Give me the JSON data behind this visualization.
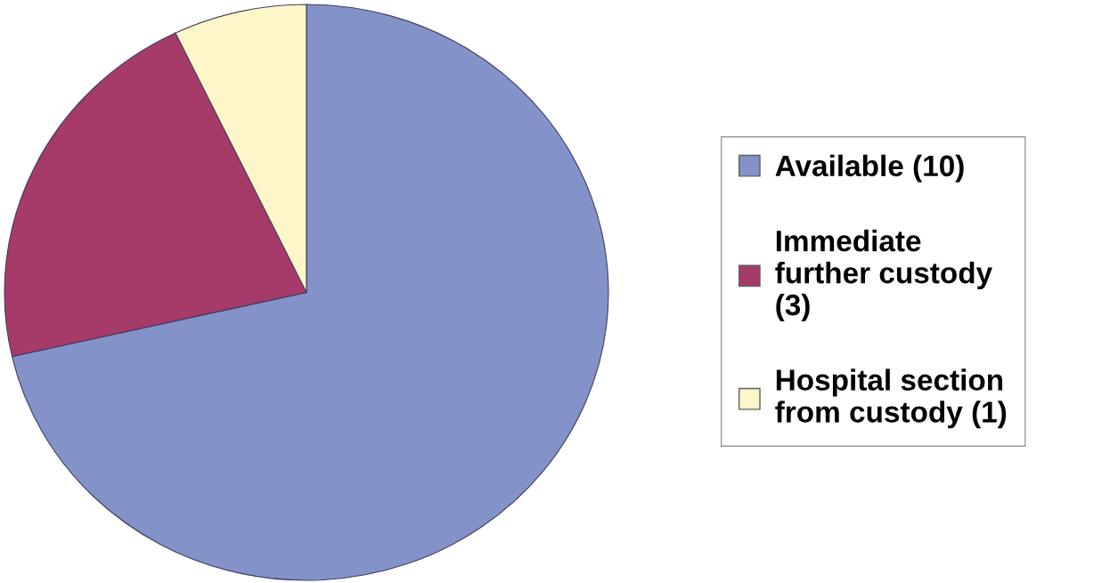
{
  "chart_data": {
    "type": "pie",
    "categories": [
      "Available (10)",
      "Immediate\nfurther custody\n(3)",
      "Hospital section\nfrom custody (1)"
    ],
    "values": [
      10,
      3,
      1
    ],
    "colors": [
      "#8392c9",
      "#a63a68",
      "#fdf6c8"
    ],
    "legend": "right"
  }
}
